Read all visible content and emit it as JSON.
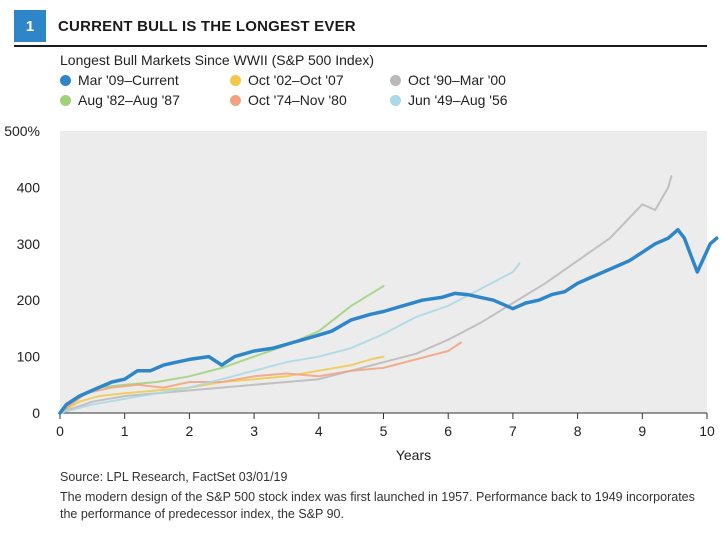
{
  "header": {
    "figure_number": "1",
    "title": "CURRENT BULL IS THE LONGEST EVER"
  },
  "footer": {
    "source": "Source: LPL Research, FactSet 03/01/19",
    "note": "The modern design of the S&P 500 stock index was first launched in 1957. Performance back to 1949 incorporates the performance of predecessor index, the S&P 90."
  },
  "chart_data": {
    "type": "line",
    "title": "Longest Bull Markets Since WWII (S&P 500 Index)",
    "xlabel": "Years",
    "ylabel": "",
    "xlim": [
      0,
      10
    ],
    "ylim": [
      0,
      500
    ],
    "x_ticks": [
      "0",
      "1",
      "2",
      "3",
      "4",
      "5",
      "6",
      "7",
      "8",
      "9",
      "10"
    ],
    "y_ticks": [
      "0",
      "100",
      "200",
      "300",
      "400",
      "500%"
    ],
    "grid": false,
    "legend_position": "top",
    "background": "#ececec",
    "series": [
      {
        "name": "Mar '09–Current",
        "color": "#2e86c9",
        "emphasis": true,
        "points": [
          [
            0,
            0
          ],
          [
            0.1,
            15
          ],
          [
            0.3,
            30
          ],
          [
            0.5,
            40
          ],
          [
            0.8,
            55
          ],
          [
            1.0,
            60
          ],
          [
            1.2,
            75
          ],
          [
            1.4,
            75
          ],
          [
            1.6,
            85
          ],
          [
            1.8,
            90
          ],
          [
            2.0,
            95
          ],
          [
            2.3,
            100
          ],
          [
            2.5,
            85
          ],
          [
            2.7,
            100
          ],
          [
            3.0,
            110
          ],
          [
            3.3,
            115
          ],
          [
            3.6,
            125
          ],
          [
            3.9,
            135
          ],
          [
            4.2,
            145
          ],
          [
            4.5,
            165
          ],
          [
            4.8,
            175
          ],
          [
            5.0,
            180
          ],
          [
            5.3,
            190
          ],
          [
            5.6,
            200
          ],
          [
            5.9,
            205
          ],
          [
            6.1,
            212
          ],
          [
            6.3,
            210
          ],
          [
            6.5,
            205
          ],
          [
            6.7,
            200
          ],
          [
            6.9,
            190
          ],
          [
            7.0,
            185
          ],
          [
            7.2,
            195
          ],
          [
            7.4,
            200
          ],
          [
            7.6,
            210
          ],
          [
            7.8,
            215
          ],
          [
            8.0,
            230
          ],
          [
            8.2,
            240
          ],
          [
            8.4,
            250
          ],
          [
            8.6,
            260
          ],
          [
            8.8,
            270
          ],
          [
            9.0,
            285
          ],
          [
            9.2,
            300
          ],
          [
            9.4,
            310
          ],
          [
            9.55,
            325
          ],
          [
            9.65,
            310
          ],
          [
            9.75,
            280
          ],
          [
            9.85,
            250
          ],
          [
            9.95,
            275
          ],
          [
            10.05,
            300
          ],
          [
            10.15,
            310
          ]
        ]
      },
      {
        "name": "Oct '02–Oct '07",
        "color": "#f0c94a",
        "emphasis": false,
        "points": [
          [
            0,
            0
          ],
          [
            0.3,
            20
          ],
          [
            0.6,
            30
          ],
          [
            1.0,
            35
          ],
          [
            1.5,
            40
          ],
          [
            2.0,
            45
          ],
          [
            2.5,
            55
          ],
          [
            3.0,
            60
          ],
          [
            3.5,
            65
          ],
          [
            4.0,
            75
          ],
          [
            4.5,
            85
          ],
          [
            4.8,
            95
          ],
          [
            5.0,
            100
          ]
        ]
      },
      {
        "name": "Oct '90–Mar '00",
        "color": "#b9b9b9",
        "emphasis": false,
        "points": [
          [
            0,
            0
          ],
          [
            0.5,
            20
          ],
          [
            1.0,
            30
          ],
          [
            1.5,
            35
          ],
          [
            2.0,
            40
          ],
          [
            2.5,
            45
          ],
          [
            3.0,
            50
          ],
          [
            3.5,
            55
          ],
          [
            4.0,
            60
          ],
          [
            4.5,
            75
          ],
          [
            5.0,
            90
          ],
          [
            5.5,
            105
          ],
          [
            6.0,
            130
          ],
          [
            6.5,
            160
          ],
          [
            7.0,
            195
          ],
          [
            7.5,
            230
          ],
          [
            8.0,
            270
          ],
          [
            8.5,
            310
          ],
          [
            9.0,
            370
          ],
          [
            9.2,
            360
          ],
          [
            9.4,
            400
          ],
          [
            9.45,
            420
          ]
        ]
      },
      {
        "name": "Aug '82–Aug '87",
        "color": "#9ed27a",
        "emphasis": false,
        "points": [
          [
            0,
            0
          ],
          [
            0.3,
            30
          ],
          [
            0.6,
            45
          ],
          [
            1.0,
            50
          ],
          [
            1.5,
            55
          ],
          [
            2.0,
            65
          ],
          [
            2.5,
            80
          ],
          [
            3.0,
            100
          ],
          [
            3.5,
            120
          ],
          [
            4.0,
            145
          ],
          [
            4.5,
            190
          ],
          [
            5.0,
            225
          ]
        ]
      },
      {
        "name": "Oct '74–Nov '80",
        "color": "#f2a27e",
        "emphasis": false,
        "points": [
          [
            0,
            0
          ],
          [
            0.4,
            35
          ],
          [
            0.8,
            45
          ],
          [
            1.2,
            50
          ],
          [
            1.6,
            45
          ],
          [
            2.0,
            55
          ],
          [
            2.5,
            55
          ],
          [
            3.0,
            65
          ],
          [
            3.5,
            70
          ],
          [
            4.0,
            65
          ],
          [
            4.5,
            75
          ],
          [
            5.0,
            80
          ],
          [
            5.5,
            95
          ],
          [
            6.0,
            110
          ],
          [
            6.2,
            125
          ]
        ]
      },
      {
        "name": "Jun '49–Aug '56",
        "color": "#a9d8e6",
        "emphasis": false,
        "points": [
          [
            0,
            0
          ],
          [
            0.5,
            15
          ],
          [
            1.0,
            25
          ],
          [
            1.5,
            35
          ],
          [
            2.0,
            45
          ],
          [
            2.5,
            60
          ],
          [
            3.0,
            75
          ],
          [
            3.5,
            90
          ],
          [
            4.0,
            100
          ],
          [
            4.5,
            115
          ],
          [
            5.0,
            140
          ],
          [
            5.5,
            170
          ],
          [
            6.0,
            190
          ],
          [
            6.5,
            220
          ],
          [
            7.0,
            250
          ],
          [
            7.1,
            265
          ]
        ]
      }
    ]
  }
}
